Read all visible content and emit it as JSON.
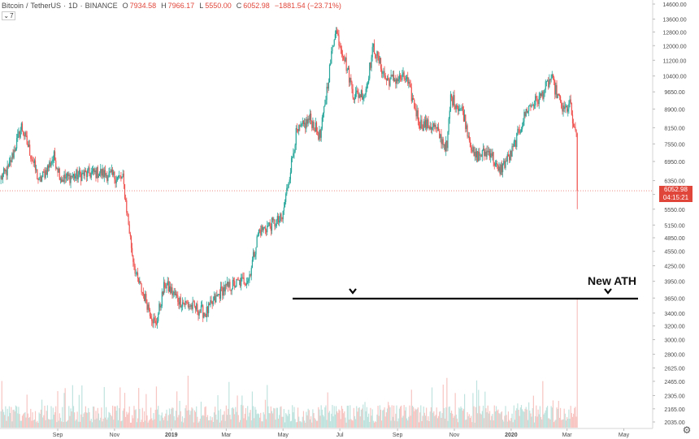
{
  "header": {
    "symbol": "Bitcoin",
    "quote": "TetherUS",
    "interval": "1D",
    "exchange": "BINANCE",
    "ohlc": [
      {
        "label": "O",
        "value": "7934.58"
      },
      {
        "label": "H",
        "value": "7966.17"
      },
      {
        "label": "L",
        "value": "5550.00"
      },
      {
        "label": "C",
        "value": "6052.98"
      }
    ],
    "change": "−1881.54 (−23.71%)",
    "collapse_count": "7"
  },
  "last_price": {
    "value": "6052.98",
    "countdown": "04:15:21"
  },
  "colors": {
    "up": "#26a69a",
    "down": "#ef5350",
    "vol_up": "#bfe3de",
    "vol_down": "#f7c5c2",
    "tag": "#e0463a"
  },
  "icons": {
    "collapse": "chevron-down-icon",
    "settings": "gear-icon"
  },
  "chart_data": {
    "type": "candlestick",
    "scale": "log",
    "y_ticks": [
      2035,
      2165,
      2305,
      2465,
      2625,
      2800,
      3000,
      3200,
      3400,
      3650,
      3950,
      4250,
      4550,
      4850,
      5150,
      5550,
      5950,
      6350,
      6950,
      7550,
      8150,
      8900,
      9650,
      10400,
      11200,
      12000,
      12800,
      13600,
      14600
    ],
    "y_tick_labels": [
      "2035.00",
      "2165.00",
      "2305.00",
      "2465.00",
      "2625.00",
      "2800.00",
      "3000.00",
      "3200.00",
      "3400.00",
      "3650.00",
      "3950.00",
      "4250.00",
      "4550.00",
      "4850.00",
      "5150.00",
      "5550.00",
      "5950.00",
      "6350.00",
      "6950.00",
      "7550.00",
      "8150.00",
      "8900.00",
      "9650.00",
      "10400.00",
      "11200.00",
      "12000.00",
      "12800.00",
      "13600.00",
      "14600.00"
    ],
    "x_ticks": [
      "Sep",
      "Nov",
      "2019",
      "Mar",
      "May",
      "Jul",
      "Sep",
      "Nov",
      "2020",
      "Mar",
      "May"
    ],
    "x_range": [
      "2018-07-01",
      "2020-06-01"
    ],
    "price_path": [
      {
        "date": "2018-07-01",
        "price": 6400
      },
      {
        "date": "2018-07-10",
        "price": 6700
      },
      {
        "date": "2018-07-24",
        "price": 8200
      },
      {
        "date": "2018-08-05",
        "price": 7000
      },
      {
        "date": "2018-08-12",
        "price": 6300
      },
      {
        "date": "2018-08-28",
        "price": 7100
      },
      {
        "date": "2018-09-05",
        "price": 6400
      },
      {
        "date": "2018-09-20",
        "price": 6500
      },
      {
        "date": "2018-10-15",
        "price": 6600
      },
      {
        "date": "2018-11-10",
        "price": 6400
      },
      {
        "date": "2018-11-20",
        "price": 4500
      },
      {
        "date": "2018-11-25",
        "price": 4000
      },
      {
        "date": "2018-12-05",
        "price": 3600
      },
      {
        "date": "2018-12-15",
        "price": 3200
      },
      {
        "date": "2018-12-25",
        "price": 3900
      },
      {
        "date": "2019-01-10",
        "price": 3600
      },
      {
        "date": "2019-02-07",
        "price": 3400
      },
      {
        "date": "2019-02-25",
        "price": 3800
      },
      {
        "date": "2019-03-25",
        "price": 4000
      },
      {
        "date": "2019-04-05",
        "price": 5000
      },
      {
        "date": "2019-04-30",
        "price": 5300
      },
      {
        "date": "2019-05-15",
        "price": 7900
      },
      {
        "date": "2019-05-30",
        "price": 8500
      },
      {
        "date": "2019-06-10",
        "price": 7800
      },
      {
        "date": "2019-06-26",
        "price": 13000
      },
      {
        "date": "2019-07-05",
        "price": 11500
      },
      {
        "date": "2019-07-16",
        "price": 9500
      },
      {
        "date": "2019-07-28",
        "price": 9600
      },
      {
        "date": "2019-08-06",
        "price": 11900
      },
      {
        "date": "2019-08-20",
        "price": 10200
      },
      {
        "date": "2019-09-10",
        "price": 10300
      },
      {
        "date": "2019-09-25",
        "price": 8300
      },
      {
        "date": "2019-10-10",
        "price": 8200
      },
      {
        "date": "2019-10-24",
        "price": 7400
      },
      {
        "date": "2019-10-28",
        "price": 9400
      },
      {
        "date": "2019-11-10",
        "price": 8800
      },
      {
        "date": "2019-11-22",
        "price": 7100
      },
      {
        "date": "2019-12-10",
        "price": 7300
      },
      {
        "date": "2019-12-18",
        "price": 6600
      },
      {
        "date": "2020-01-01",
        "price": 7200
      },
      {
        "date": "2020-01-18",
        "price": 8900
      },
      {
        "date": "2020-02-01",
        "price": 9400
      },
      {
        "date": "2020-02-13",
        "price": 10300
      },
      {
        "date": "2020-02-26",
        "price": 8800
      },
      {
        "date": "2020-03-05",
        "price": 9100
      },
      {
        "date": "2020-03-08",
        "price": 8000
      },
      {
        "date": "2020-03-11",
        "price": 7930
      },
      {
        "date": "2020-03-12",
        "price": 6053
      }
    ],
    "volume_note": "volume bars at bottom; largest spike on the last candle",
    "annotations": [
      {
        "text": "New ATH",
        "date": "2020-03-12"
      }
    ]
  }
}
